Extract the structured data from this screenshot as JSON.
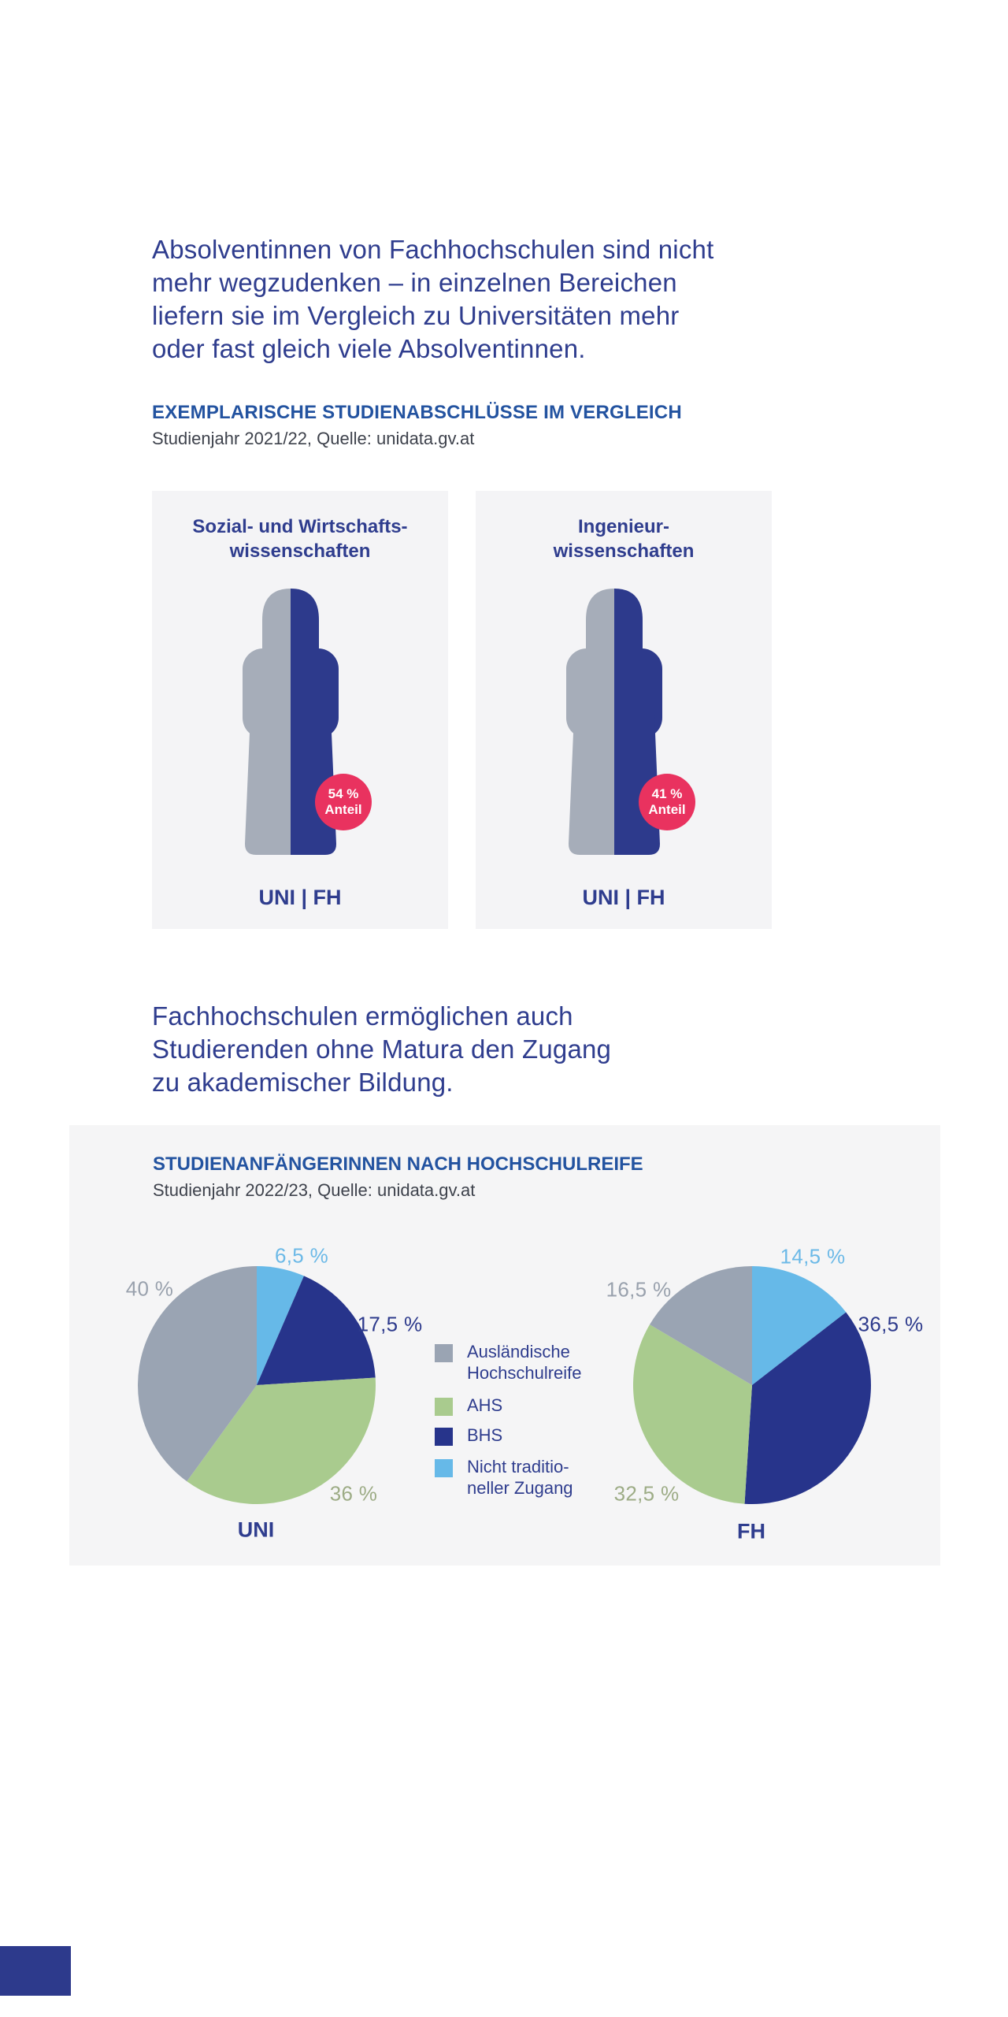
{
  "intro1": {
    "lines": [
      "Absolventinnen von Fachhochschulen sind nicht",
      "mehr wegzudenken – in einzelnen Bereichen",
      "liefern sie im Vergleich zu Universitäten mehr",
      "oder fast gleich viele Absolventinnen."
    ]
  },
  "section1": {
    "title": "EXEMPLARISCHE STUDIENABSCHLÜSSE IM VERGLEICH",
    "subtitle": "Studienjahr 2021/22, Quelle: unidata.gv.at",
    "cards": [
      {
        "title_line1": "Sozial- und Wirtschafts-",
        "title_line2": "wissenschaften",
        "badge_value": "54 %",
        "badge_label": "Anteil",
        "footer": "UNI | FH"
      },
      {
        "title_line1": "Ingenieur-",
        "title_line2": "wissenschaften",
        "badge_value": "41 %",
        "badge_label": "Anteil",
        "footer": "UNI | FH"
      }
    ]
  },
  "intro2": {
    "lines": [
      "Fachhochschulen ermöglichen auch",
      "Studierenden ohne Matura den Zugang",
      "zu akademischer Bildung."
    ]
  },
  "section2": {
    "title": "STUDIENANFÄNGERINNEN NACH HOCHSCHULREIFE",
    "subtitle": "Studienjahr 2022/23, Quelle: unidata.gv.at",
    "legend": [
      {
        "lines": [
          "Ausländische",
          "Hochschulreife"
        ],
        "color": "#9aa4b3"
      },
      {
        "lines": [
          "AHS"
        ],
        "color": "#a9cb8e"
      },
      {
        "lines": [
          "BHS"
        ],
        "color": "#27348b"
      },
      {
        "lines": [
          "Nicht traditio-",
          "neller Zugang"
        ],
        "color": "#66b9e8"
      }
    ]
  },
  "chart_data": [
    {
      "type": "pie",
      "title": "UNI",
      "start_angle_deg": 0,
      "direction": "clockwise",
      "unit": "%",
      "slices": [
        {
          "name": "Nicht traditioneller Zugang",
          "value": 6.5,
          "label": "6,5 %",
          "color": "#66b9e8"
        },
        {
          "name": "BHS",
          "value": 17.5,
          "label": "17,5 %",
          "color": "#27348b"
        },
        {
          "name": "AHS",
          "value": 36,
          "label": "36 %",
          "color": "#a9cb8e"
        },
        {
          "name": "Ausländische Hochschulreife",
          "value": 40,
          "label": "40 %",
          "color": "#9aa4b3"
        }
      ]
    },
    {
      "type": "pie",
      "title": "FH",
      "start_angle_deg": 0,
      "direction": "clockwise",
      "unit": "%",
      "slices": [
        {
          "name": "Nicht traditioneller Zugang",
          "value": 14.5,
          "label": "14,5 %",
          "color": "#66b9e8"
        },
        {
          "name": "BHS",
          "value": 36.5,
          "label": "36,5 %",
          "color": "#27348b"
        },
        {
          "name": "AHS",
          "value": 32.5,
          "label": "32,5 %",
          "color": "#a9cb8e"
        },
        {
          "name": "Ausländische Hochschulreife",
          "value": 16.5,
          "label": "16,5 %",
          "color": "#9aa4b3"
        }
      ]
    },
    {
      "type": "pictogram",
      "title": "EXEMPLARISCHE STUDIENABSCHLÜSSE IM VERGLEICH",
      "unit": "%",
      "items": [
        {
          "category": "Sozial- und Wirtschaftswissenschaften",
          "fh_share_pct": 54,
          "badge": "54 % Anteil",
          "compare": "UNI | FH"
        },
        {
          "category": "Ingenieurwissenschaften",
          "fh_share_pct": 41,
          "badge": "41 % Anteil",
          "compare": "UNI | FH"
        }
      ]
    }
  ],
  "colors": {
    "headline": "#2f3d8e",
    "section_title": "#2353a0",
    "subtitle": "#3e424c",
    "card_bg": "#f4f4f6",
    "panel_bg": "#f5f5f6",
    "silhouette_uni_gray": "#a6adb9",
    "silhouette_fh_blue": "#2d3a8c",
    "badge_pink": "#e9325f",
    "pie_gray": "#9aa4b3",
    "pie_green": "#a9cb8e",
    "pie_dark_blue": "#27348b",
    "pie_light_blue": "#66b9e8",
    "footer_bar_blue": "#2d3a8c"
  }
}
